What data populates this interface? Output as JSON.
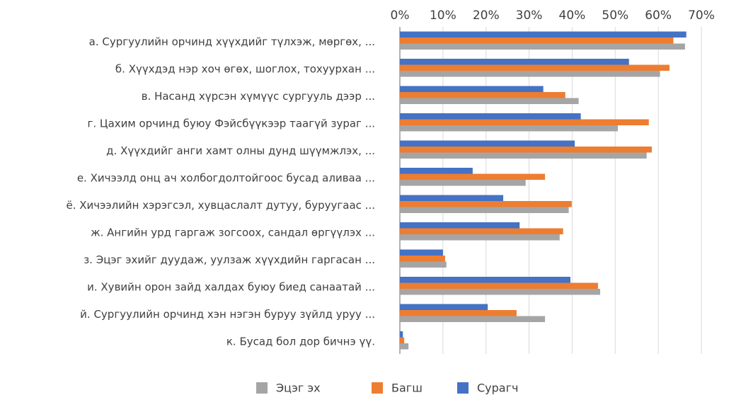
{
  "chart_data": {
    "type": "bar",
    "orientation": "horizontal",
    "categories": [
      "а. Сургуулийн орчинд хүүхдийг түлхэж, мөргөх, ...",
      "б. Хүүхдэд нэр хоч өгөх, шоглох, тохуурхан ...",
      "в. Насанд хүрсэн хүмүүс сургууль дээр ...",
      "г. Цахим орчинд буюу Фэйсбүүкээр таагүй зураг ...",
      "д. Хүүхдийг анги хамт олны дунд шүүмжлэх, ...",
      "е. Хичээлд онц ач холбогдолтойгоос бусад аливаа ...",
      "ё. Хичээлийн хэрэгсэл, хувцаслалт дутуу, буруугаас ...",
      "ж. Ангийн урд гаргаж зогсоох, сандал өргүүлэх ...",
      "з. Эцэг эхийг дуудаж, уулзаж хүүхдийн гаргасан ...",
      "и. Хувийн орон зайд халдах буюу биед санаатай ...",
      "й. Сургуулийн орчинд хэн нэгэн буруу зүйлд уруу ...",
      "к. Бусад бол дор бичнэ үү."
    ],
    "series": [
      {
        "name": "Эцэг эх",
        "color": "#a5a5a5",
        "values": [
          66.2,
          60.4,
          41.5,
          50.6,
          57.3,
          29.2,
          39.2,
          37.1,
          10.8,
          46.5,
          33.7,
          2.0
        ]
      },
      {
        "name": "Багш",
        "color": "#ed7d31",
        "values": [
          63.5,
          62.6,
          38.4,
          57.8,
          58.5,
          33.7,
          39.9,
          37.9,
          10.5,
          46.0,
          27.1,
          1.0
        ]
      },
      {
        "name": "Сурагч",
        "color": "#4472c4",
        "values": [
          66.5,
          53.2,
          33.3,
          42.0,
          40.6,
          16.9,
          24.0,
          27.8,
          10.0,
          39.6,
          20.4,
          0.7
        ]
      }
    ],
    "xlim": [
      0,
      70
    ],
    "xticks": [
      {
        "value": 0,
        "label": "0%"
      },
      {
        "value": 10,
        "label": "10%"
      },
      {
        "value": 20,
        "label": "20%"
      },
      {
        "value": 30,
        "label": "30%"
      },
      {
        "value": 40,
        "label": "40%"
      },
      {
        "value": 50,
        "label": "50%"
      },
      {
        "value": 60,
        "label": "60%"
      },
      {
        "value": 70,
        "label": "70%"
      }
    ],
    "grid": true,
    "legend": "bottom"
  }
}
